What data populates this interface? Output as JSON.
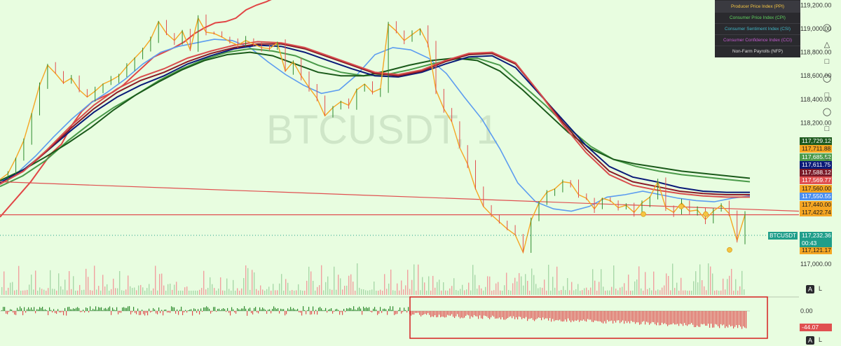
{
  "chart_data": {
    "type": "line",
    "watermark": "BTCUSDT, 1",
    "symbol": "BTCUSDT",
    "current_price": "117,232.36",
    "countdown": "00:43",
    "y_ticks": [
      "119,200.00",
      "119,000.00",
      "118,800.00",
      "118,600.00",
      "118,400.00",
      "118,200.00",
      "117,000.00"
    ],
    "ylim": [
      116900,
      119220
    ],
    "price_series": [
      117720,
      117770,
      117900,
      118050,
      118280,
      118520,
      118690,
      118620,
      118540,
      118580,
      118480,
      118420,
      118470,
      118530,
      118560,
      118600,
      118680,
      118750,
      118820,
      118910,
      119060,
      118960,
      118900,
      118980,
      118820,
      119090,
      118970,
      118960,
      118930,
      118890,
      118860,
      118900,
      118870,
      118840,
      118830,
      118880,
      118640,
      118720,
      118600,
      118500,
      118410,
      118260,
      118330,
      118380,
      118350,
      118480,
      118530,
      118460,
      118490,
      119040,
      118980,
      118900,
      118950,
      119000,
      118870,
      118480,
      118320,
      118210,
      117990,
      117850,
      117640,
      117490,
      117420,
      117360,
      117300,
      117250,
      117100,
      117370,
      117520,
      117610,
      117640,
      117700,
      117690,
      117590,
      117560,
      117470,
      117560,
      117540,
      117480,
      117500,
      117440,
      117520,
      117570,
      117700,
      117480,
      117440,
      117520,
      117450,
      117460,
      117380,
      117450,
      117500,
      117430,
      117200,
      117420
    ],
    "series": [
      {
        "name": "",
        "color": "#e14545",
        "values": [
          117400,
          117500,
          117600,
          117700,
          117820,
          117940,
          118020,
          118180,
          118300,
          118380,
          118420,
          118460,
          118520,
          118600,
          118680,
          118760,
          118800,
          118840,
          118890,
          118960,
          119010,
          119050,
          119060,
          119090,
          119160,
          119200,
          119230,
          119270
        ]
      },
      {
        "name": "",
        "color": "#5c9cf0",
        "values": [
          117700,
          117780,
          117920,
          118080,
          118230,
          118360,
          118460,
          118570,
          118700,
          118800,
          118850,
          118880,
          118910,
          118900,
          118840,
          118720,
          118610,
          118520,
          118450,
          118480,
          118610,
          118780,
          118840,
          118820,
          118750,
          118620,
          118420,
          118230,
          117980,
          117690,
          117530,
          117470,
          117450,
          117490,
          117570,
          117590,
          117620,
          117590,
          117560,
          117540,
          117530,
          117560,
          117580
        ]
      },
      {
        "name": "",
        "color": "#4a9a4a",
        "values": [
          117660,
          117750,
          117880,
          118050,
          118200,
          118330,
          118440,
          118560,
          118660,
          118740,
          118800,
          118830,
          118810,
          118770,
          118690,
          118630,
          118600,
          118610,
          118650,
          118700,
          118740,
          118750,
          118690,
          118520,
          118350,
          118160,
          118000,
          117890,
          117830,
          117790,
          117760,
          117740,
          117720,
          117700
        ]
      },
      {
        "name": "",
        "color": "#1a5a1a",
        "values": [
          117710,
          117800,
          117910,
          118030,
          118160,
          118310,
          118440,
          118550,
          118650,
          118730,
          118780,
          118800,
          118770,
          118700,
          118630,
          118600,
          118600,
          118640,
          118690,
          118730,
          118750,
          118730,
          118640,
          118480,
          118300,
          118120,
          117980,
          117890,
          117850,
          117820,
          117790,
          117770,
          117750,
          117730
        ]
      },
      {
        "name": "",
        "color": "#0a1a78",
        "values": [
          117690,
          117800,
          117960,
          118130,
          118290,
          118420,
          118520,
          118600,
          118700,
          118770,
          118830,
          118860,
          118850,
          118800,
          118730,
          118660,
          118600,
          118590,
          118630,
          118700,
          118760,
          118770,
          118670,
          118450,
          118230,
          118010,
          117830,
          117740,
          117700,
          117650,
          117620,
          117610,
          117610
        ]
      },
      {
        "name": "",
        "color": "#8a1a28",
        "values": [
          117680,
          117790,
          117960,
          118150,
          118320,
          118460,
          118560,
          118630,
          118720,
          118790,
          118840,
          118870,
          118870,
          118830,
          118760,
          118690,
          118620,
          118600,
          118640,
          118720,
          118780,
          118790,
          118700,
          118460,
          118210,
          117980,
          117790,
          117700,
          117660,
          117620,
          117600,
          117590,
          117590
        ]
      },
      {
        "name": "",
        "color": "#d94d4d",
        "values": [
          117680,
          117790,
          117970,
          118170,
          118350,
          118490,
          118590,
          118660,
          118750,
          118810,
          118860,
          118890,
          118880,
          118840,
          118770,
          118700,
          118630,
          118610,
          118650,
          118730,
          118790,
          118800,
          118710,
          118460,
          118190,
          117950,
          117760,
          117670,
          117630,
          117600,
          117580,
          117570,
          117570
        ]
      }
    ],
    "trendlines": [
      {
        "color": "#e05050",
        "from": 117700,
        "to": 117450
      },
      {
        "color": "#e05050",
        "from": 117420,
        "to": 117420
      }
    ],
    "price_labels": [
      {
        "value": "117,729.12",
        "bg": "#1e5a1e",
        "fg": "#ffffff"
      },
      {
        "value": "117,711.88",
        "bg": "#f5a623",
        "fg": "#1a1a1a"
      },
      {
        "value": "117,685.52",
        "bg": "#4a9a4a",
        "fg": "#ffffff"
      },
      {
        "value": "117,611.75",
        "bg": "#0a1a78",
        "fg": "#ffffff"
      },
      {
        "value": "117,588.12",
        "bg": "#7a1a28",
        "fg": "#ffffff"
      },
      {
        "value": "117,569.77",
        "bg": "#e05050",
        "fg": "#ffffff"
      },
      {
        "value": "117,560.00",
        "bg": "#f5a623",
        "fg": "#1a1a1a"
      },
      {
        "value": "117,550.55",
        "bg": "#4a8ef0",
        "fg": "#ffffff"
      },
      {
        "value": "117,440.00",
        "bg": "#f5a623",
        "fg": "#1a1a1a"
      },
      {
        "value": "117,422.74",
        "bg": "#f5a623",
        "fg": "#1a1a1a"
      },
      {
        "value": "117,121.17",
        "bg": "#f5a623",
        "fg": "#1a1a1a"
      }
    ],
    "indicator": {
      "zero_label": "0.00",
      "value_label": "-44.07",
      "positive_color": "#2e8b2e",
      "negative_color": "#e05050"
    }
  },
  "legend": {
    "items": [
      {
        "label": "Producer Price Index (PPI)",
        "color": "#f5c542"
      },
      {
        "label": "Consumer Price Index (CPI)",
        "color": "#5fd35f"
      },
      {
        "label": "Consumer Sentiment Index (CSI)",
        "color": "#3fb8c8"
      },
      {
        "label": "Consumer Confidence Index (CCI)",
        "color": "#c45bd0"
      },
      {
        "label": "Non-Farm Payrolls (NFP)",
        "color": "#dddddd"
      }
    ]
  },
  "buttons": {
    "auto_a": "A",
    "log_l": "L"
  },
  "colors": {
    "background": "#e8fde0",
    "up": "#2e8b2e",
    "down": "#e05050",
    "price_line": "#f5a623",
    "highlight_box": "#d62020"
  }
}
